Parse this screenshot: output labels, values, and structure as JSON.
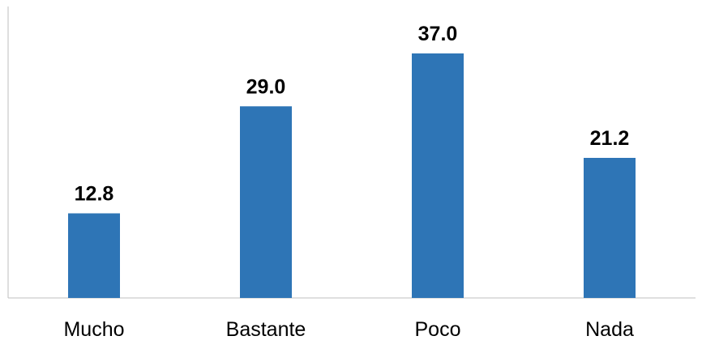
{
  "chart_data": {
    "type": "bar",
    "categories": [
      "Mucho",
      "Bastante",
      "Poco",
      "Nada"
    ],
    "values": [
      12.8,
      29.0,
      37.0,
      21.2
    ],
    "value_labels": [
      "12.8",
      "29.0",
      "37.0",
      "21.2"
    ],
    "title": "",
    "xlabel": "",
    "ylabel": "",
    "ylim": [
      0,
      40
    ],
    "grid": false,
    "legend": "none",
    "data_labels": true,
    "bar_color": "#2e75b6",
    "axis_color": "#bfbfbf"
  }
}
